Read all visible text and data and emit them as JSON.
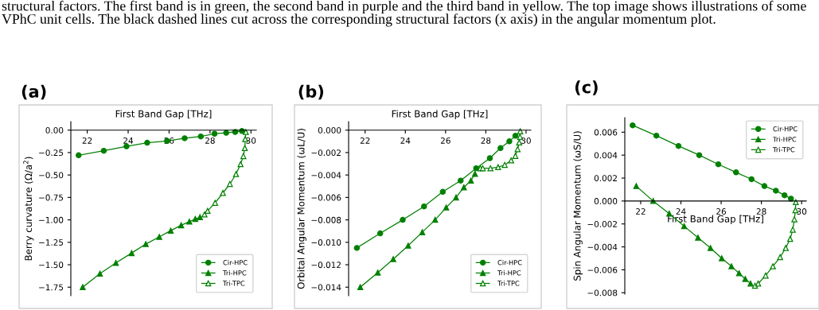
{
  "chart_data": [
    {
      "type": "line",
      "title": "(a)",
      "xlabel": "First Band Gap [THz]",
      "ylabel": "Berry curvature (Ω/a$^{2}$)",
      "annotations": [
        "structural factors. The first band is in green, the second band in purple and the third band in yellow. The top image shows illustrations of some VPhC unit cells. The black dashed lines cut across the corresponding structural factors (x axis) in the angular momentum plot."
      ],
      "xlim": [
        21.2,
        30.26
      ],
      "ylim": [
        -1.845,
        0.095
      ],
      "xticks": [
        22,
        24,
        26,
        28,
        30
      ],
      "yticks": [
        {
          "value": 0,
          "label": "0.00"
        },
        {
          "value": -0.25,
          "label": "−0.25"
        },
        {
          "value": -0.5,
          "label": "−0.50"
        },
        {
          "value": -0.75,
          "label": "−0.75"
        },
        {
          "value": -1.0,
          "label": "−1.00"
        },
        {
          "value": -1.25,
          "label": "−1.25"
        },
        {
          "value": -1.5,
          "label": "−1.50"
        },
        {
          "value": -1.75,
          "label": "−1.75"
        }
      ],
      "grid": false,
      "legend": "bottom right",
      "series": [
        {
          "name": "Cir-HPC",
          "color": "#008000",
          "marker": "circle",
          "x": [
            21.58,
            22.81,
            23.92,
            24.93,
            25.9,
            26.76,
            27.55,
            28.22,
            28.79,
            29.23,
            29.56
          ],
          "values": [
            -0.28,
            -0.23,
            -0.18,
            -0.14,
            -0.12,
            -0.09,
            -0.07,
            -0.04,
            -0.03,
            -0.02,
            -0.01
          ]
        },
        {
          "name": "Tri-HPC",
          "color": "#008000",
          "marker": "triangle",
          "x": [
            21.78,
            22.62,
            23.4,
            24.17,
            24.86,
            25.52,
            26.08,
            26.59,
            26.99,
            27.28,
            27.51
          ],
          "values": [
            -1.75,
            -1.6,
            -1.48,
            -1.37,
            -1.27,
            -1.19,
            -1.12,
            -1.06,
            -1.02,
            -0.99,
            -0.97
          ]
        },
        {
          "name": "Tri-TPC",
          "color": "#008000",
          "marker": "triangle-open",
          "x": [
            27.73,
            27.88,
            28.25,
            28.63,
            28.97,
            29.27,
            29.49,
            29.63,
            29.7,
            29.72,
            29.75
          ],
          "values": [
            -0.94,
            -0.9,
            -0.81,
            -0.7,
            -0.6,
            -0.49,
            -0.38,
            -0.29,
            -0.2,
            -0.1,
            -0.02
          ]
        }
      ]
    },
    {
      "type": "line",
      "title": "(b)",
      "xlabel": "First Band Gap [THz]",
      "ylabel": "Orbital Angular Momentum (ωL/U)",
      "xlim": [
        21.18,
        30.24
      ],
      "ylim": [
        -0.01476,
        0.00076
      ],
      "xticks": [
        22,
        24,
        26,
        28,
        30
      ],
      "yticks": [
        {
          "value": 0,
          "label": "0.000"
        },
        {
          "value": -0.002,
          "label": "−0.002"
        },
        {
          "value": -0.004,
          "label": "−0.004"
        },
        {
          "value": -0.006,
          "label": "−0.006"
        },
        {
          "value": -0.008,
          "label": "−0.008"
        },
        {
          "value": -0.01,
          "label": "−0.010"
        },
        {
          "value": -0.012,
          "label": "−0.012"
        },
        {
          "value": -0.014,
          "label": "−0.014"
        }
      ],
      "grid": false,
      "legend": "bottom right",
      "series": [
        {
          "name": "Cir-HPC",
          "color": "#008000",
          "marker": "circle",
          "x": [
            21.59,
            22.75,
            23.87,
            24.93,
            25.86,
            26.75,
            27.52,
            28.2,
            28.73,
            29.17,
            29.47
          ],
          "values": [
            -0.0105,
            -0.0092,
            -0.008,
            -0.0068,
            -0.0055,
            -0.0045,
            -0.0034,
            -0.0025,
            -0.0016,
            -0.001,
            -0.0005
          ]
        },
        {
          "name": "Tri-HPC",
          "color": "#008000",
          "marker": "triangle",
          "x": [
            21.76,
            22.63,
            23.4,
            24.14,
            24.84,
            25.48,
            26.03,
            26.52,
            26.91,
            27.26,
            27.46
          ],
          "values": [
            -0.014,
            -0.0127,
            -0.0115,
            -0.0103,
            -0.0091,
            -0.008,
            -0.0069,
            -0.006,
            -0.0051,
            -0.0045,
            -0.0039
          ]
        },
        {
          "name": "Tri-TPC",
          "color": "#008000",
          "marker": "triangle-open",
          "x": [
            27.73,
            27.85,
            28.23,
            28.61,
            28.94,
            29.26,
            29.47,
            29.58,
            29.66,
            29.7,
            29.71
          ],
          "values": [
            -0.0034,
            -0.0034,
            -0.0034,
            -0.0033,
            -0.0031,
            -0.0027,
            -0.0023,
            -0.0017,
            -0.0011,
            -0.0006,
            -0.0001
          ]
        }
      ]
    },
    {
      "type": "line",
      "title": "(c)",
      "xlabel": "First Band Gap [THz]",
      "ylabel": "Spin Angular Momentum (ωS/U)",
      "xlim": [
        21.21,
        30.23
      ],
      "ylim": [
        -0.00812,
        0.00727
      ],
      "xticks": [
        22,
        24,
        26,
        28,
        30
      ],
      "yticks": [
        {
          "value": 0.006,
          "label": "0.006"
        },
        {
          "value": 0.004,
          "label": "0.004"
        },
        {
          "value": 0.002,
          "label": "0.002"
        },
        {
          "value": 0,
          "label": "0.000"
        },
        {
          "value": -0.002,
          "label": "−0.002"
        },
        {
          "value": -0.004,
          "label": "−0.004"
        },
        {
          "value": -0.006,
          "label": "−0.006"
        },
        {
          "value": -0.008,
          "label": "−0.008"
        }
      ],
      "grid": false,
      "legend": "top right",
      "series": [
        {
          "name": "Cir-HPC",
          "color": "#008000",
          "marker": "circle",
          "x": [
            21.6,
            22.78,
            23.88,
            24.91,
            25.86,
            26.74,
            27.51,
            28.15,
            28.72,
            29.15,
            29.47
          ],
          "values": [
            0.0066,
            0.0057,
            0.0048,
            0.004,
            0.0032,
            0.0025,
            0.0019,
            0.0013,
            0.0009,
            0.0005,
            0.0002
          ]
        },
        {
          "name": "Tri-HPC",
          "color": "#008000",
          "marker": "triangle",
          "x": [
            21.78,
            22.62,
            23.42,
            24.16,
            24.85,
            25.47,
            26.03,
            26.51,
            26.89,
            27.2,
            27.46
          ],
          "values": [
            0.0013,
            0,
            -0.0011,
            -0.0022,
            -0.0032,
            -0.0041,
            -0.005,
            -0.0057,
            -0.0063,
            -0.0068,
            -0.0072
          ]
        },
        {
          "name": "Tri-TPC",
          "color": "#008000",
          "marker": "triangle-open",
          "x": [
            27.68,
            27.84,
            28.21,
            28.57,
            28.93,
            29.21,
            29.43,
            29.56,
            29.64,
            29.69,
            29.71
          ],
          "values": [
            -0.0074,
            -0.0072,
            -0.0065,
            -0.0057,
            -0.0049,
            -0.0041,
            -0.0033,
            -0.0025,
            -0.0016,
            -0.0008,
            -0.0001
          ]
        }
      ]
    }
  ]
}
